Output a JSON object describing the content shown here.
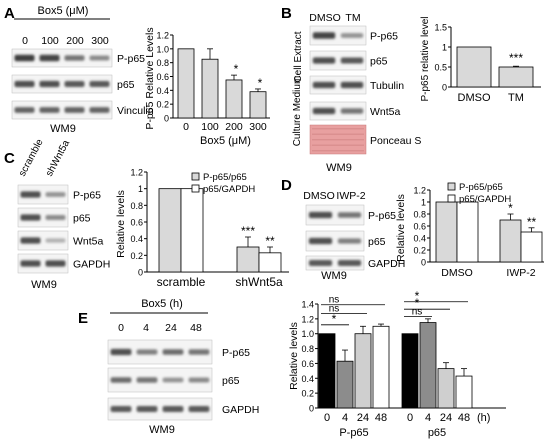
{
  "panels": {
    "A": {
      "letter": "A",
      "treatment": "Box5 (μM)",
      "lanes": [
        "0",
        "100",
        "200",
        "300"
      ],
      "blots": [
        "P-p65",
        "p65",
        "Vinculin"
      ],
      "cell_line": "WM9"
    },
    "B": {
      "letter": "B",
      "lanes": [
        "DMSO",
        "TM"
      ],
      "blots": [
        "P-p65",
        "p65",
        "Tubulin",
        "Wnt5a",
        "Ponceau S"
      ],
      "section_labels": [
        "Cell Extract",
        "Culture Medium"
      ],
      "cell_line": "WM9"
    },
    "C": {
      "letter": "C",
      "lanes": [
        "scramble",
        "shWnt5a"
      ],
      "blots": [
        "P-p65",
        "p65",
        "Wnt5a",
        "GAPDH"
      ],
      "cell_line": "WM9"
    },
    "D": {
      "letter": "D",
      "lanes": [
        "DMSO",
        "IWP-2"
      ],
      "blots": [
        "P-p65",
        "p65",
        "GAPDH"
      ],
      "cell_line": "WM9"
    },
    "E": {
      "letter": "E",
      "treatment": "Box5 (h)",
      "lanes": [
        "0",
        "4",
        "24",
        "48"
      ],
      "blots": [
        "P-p65",
        "p65",
        "GAPDH"
      ],
      "cell_line": "WM9"
    }
  },
  "colors": {
    "gray_bar": "#d9d9d9",
    "dark_bar": "#8c8c8c",
    "light_bar": "#cfcfcf",
    "white_bar": "#ffffff",
    "ponceau": "#e8a0a0"
  },
  "chart_data": [
    {
      "id": "A",
      "type": "bar",
      "categories": [
        "0",
        "100",
        "200",
        "300"
      ],
      "values": [
        1.0,
        0.85,
        0.55,
        0.38
      ],
      "errors": [
        0.0,
        0.15,
        0.07,
        0.04
      ],
      "significance": [
        "",
        "",
        "*",
        "*"
      ],
      "xlabel": "Box5 (μM)",
      "ylabel": "P-p65 Relative Levels",
      "ylim": [
        0,
        1.2
      ],
      "yticks": [
        "0",
        "0.2",
        "0.4",
        "0.6",
        "0.8",
        "1.0",
        "1.2"
      ]
    },
    {
      "id": "B",
      "type": "bar",
      "categories": [
        "DMSO",
        "TM"
      ],
      "values": [
        1.0,
        0.5
      ],
      "errors": [
        0.0,
        0.02
      ],
      "significance": [
        "",
        "***"
      ],
      "ylabel": "P-p65 relative level",
      "ylim": [
        0,
        1.5
      ],
      "yticks": [
        "0",
        "0.5",
        "1",
        "1.5"
      ]
    },
    {
      "id": "C",
      "type": "bar",
      "categories": [
        "scramble",
        "shWnt5a"
      ],
      "series": [
        {
          "name": "P-p65/p65",
          "values": [
            1.0,
            0.3
          ],
          "errors": [
            0.0,
            0.12
          ],
          "significance": [
            "",
            "***"
          ]
        },
        {
          "name": "p65/GAPDH",
          "values": [
            1.0,
            0.23
          ],
          "errors": [
            0.0,
            0.07
          ],
          "significance": [
            "",
            "**"
          ]
        }
      ],
      "ylabel": "Relative levels",
      "ylim": [
        0,
        1.2
      ],
      "yticks": [
        "0",
        "0.2",
        "0.4",
        "0.6",
        "0.8",
        "1",
        "1.2"
      ],
      "legend": "top-right"
    },
    {
      "id": "D",
      "type": "bar",
      "categories": [
        "DMSO",
        "IWP-2"
      ],
      "series": [
        {
          "name": "P-p65/p65",
          "values": [
            1.0,
            0.7
          ],
          "errors": [
            0.0,
            0.1
          ],
          "significance": [
            "",
            "*"
          ]
        },
        {
          "name": "p65/GAPDH",
          "values": [
            1.0,
            0.5
          ],
          "errors": [
            0.0,
            0.07
          ],
          "significance": [
            "",
            "**"
          ]
        }
      ],
      "ylabel": "Relative levels",
      "ylim": [
        0,
        1.2
      ],
      "yticks": [
        "0",
        "0.2",
        "0.4",
        "0.6",
        "0.8",
        "1",
        "1.2"
      ],
      "legend": "top-right"
    },
    {
      "id": "E",
      "type": "bar",
      "groups": [
        "P-p65",
        "p65"
      ],
      "categories": [
        "0",
        "4",
        "24",
        "48"
      ],
      "x_unit": "(h)",
      "groups_values": [
        {
          "name": "P-p65",
          "values": [
            1.0,
            0.63,
            1.0,
            1.1
          ],
          "errors": [
            0.0,
            0.15,
            0.1,
            0.03
          ]
        },
        {
          "name": "p65",
          "values": [
            1.0,
            1.15,
            0.53,
            0.43
          ],
          "errors": [
            0.0,
            0.05,
            0.08,
            0.1
          ]
        }
      ],
      "comparisons": [
        {
          "group": "P-p65",
          "from": "0",
          "to": "4",
          "label": "*"
        },
        {
          "group": "P-p65",
          "from": "0",
          "to": "24",
          "label": "ns"
        },
        {
          "group": "P-p65",
          "from": "0",
          "to": "48",
          "label": "ns"
        },
        {
          "group": "p65",
          "from": "0",
          "to": "4",
          "label": "ns"
        },
        {
          "group": "p65",
          "from": "0",
          "to": "24",
          "label": "*"
        },
        {
          "group": "p65",
          "from": "0",
          "to": "48",
          "label": "*"
        }
      ],
      "ylabel": "Relative levels",
      "ylim": [
        0,
        1.4
      ],
      "yticks": [
        "0",
        "0.2",
        "0.4",
        "0.6",
        "0.8",
        "1.0",
        "1.2",
        "1.4"
      ]
    }
  ]
}
